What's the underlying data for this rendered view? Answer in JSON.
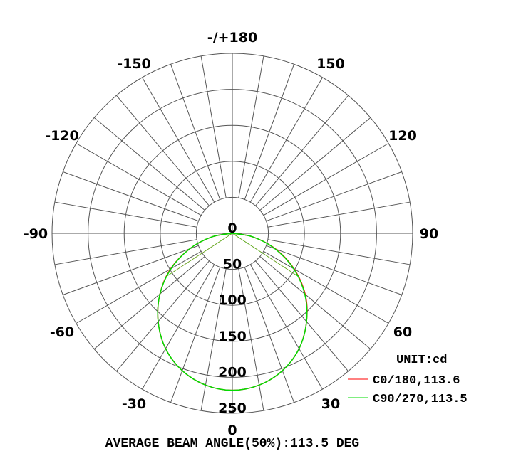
{
  "chart_data": {
    "type": "polar",
    "unit_label": "UNIT:cd",
    "footer": "AVERAGE BEAM ANGLE(50%):113.5 DEG",
    "radial_ticks": [
      0,
      50,
      100,
      150,
      200,
      250
    ],
    "radial_tick_labels": [
      "0",
      "50",
      "100",
      "150",
      "200",
      "250"
    ],
    "rlim": [
      0,
      250
    ],
    "angle_labels": [
      {
        "angle": 0,
        "label": "0"
      },
      {
        "angle": 30,
        "label": "30"
      },
      {
        "angle": 60,
        "label": "60"
      },
      {
        "angle": 90,
        "label": "90"
      },
      {
        "angle": 120,
        "label": "120"
      },
      {
        "angle": 150,
        "label": "150"
      },
      {
        "angle": 180,
        "label": "-/+180"
      },
      {
        "angle": -150,
        "label": "-150"
      },
      {
        "angle": -120,
        "label": "-120"
      },
      {
        "angle": -90,
        "label": "-90"
      },
      {
        "angle": -60,
        "label": "-60"
      },
      {
        "angle": -30,
        "label": "-30"
      }
    ],
    "grid": true,
    "legend_position": "bottom-right",
    "angles": [
      -90,
      -80,
      -70,
      -60,
      -50,
      -40,
      -30,
      -20,
      -10,
      0,
      10,
      20,
      30,
      40,
      50,
      60,
      70,
      80,
      90
    ],
    "series": [
      {
        "name": "C0/180,113.6",
        "color": "#ff0000",
        "beam_angle": 113.6,
        "values": [
          0,
          29,
          63,
          99,
          131,
          160,
          185,
          203,
          214,
          218,
          214,
          203,
          185,
          160,
          132,
          99,
          64,
          29,
          0
        ]
      },
      {
        "name": "C90/270,113.5",
        "color": "#00dd00",
        "beam_angle": 113.5,
        "values": [
          0,
          29,
          63,
          98,
          131,
          160,
          185,
          203,
          214,
          218,
          214,
          203,
          185,
          160,
          131,
          98,
          63,
          29,
          0
        ]
      }
    ]
  }
}
